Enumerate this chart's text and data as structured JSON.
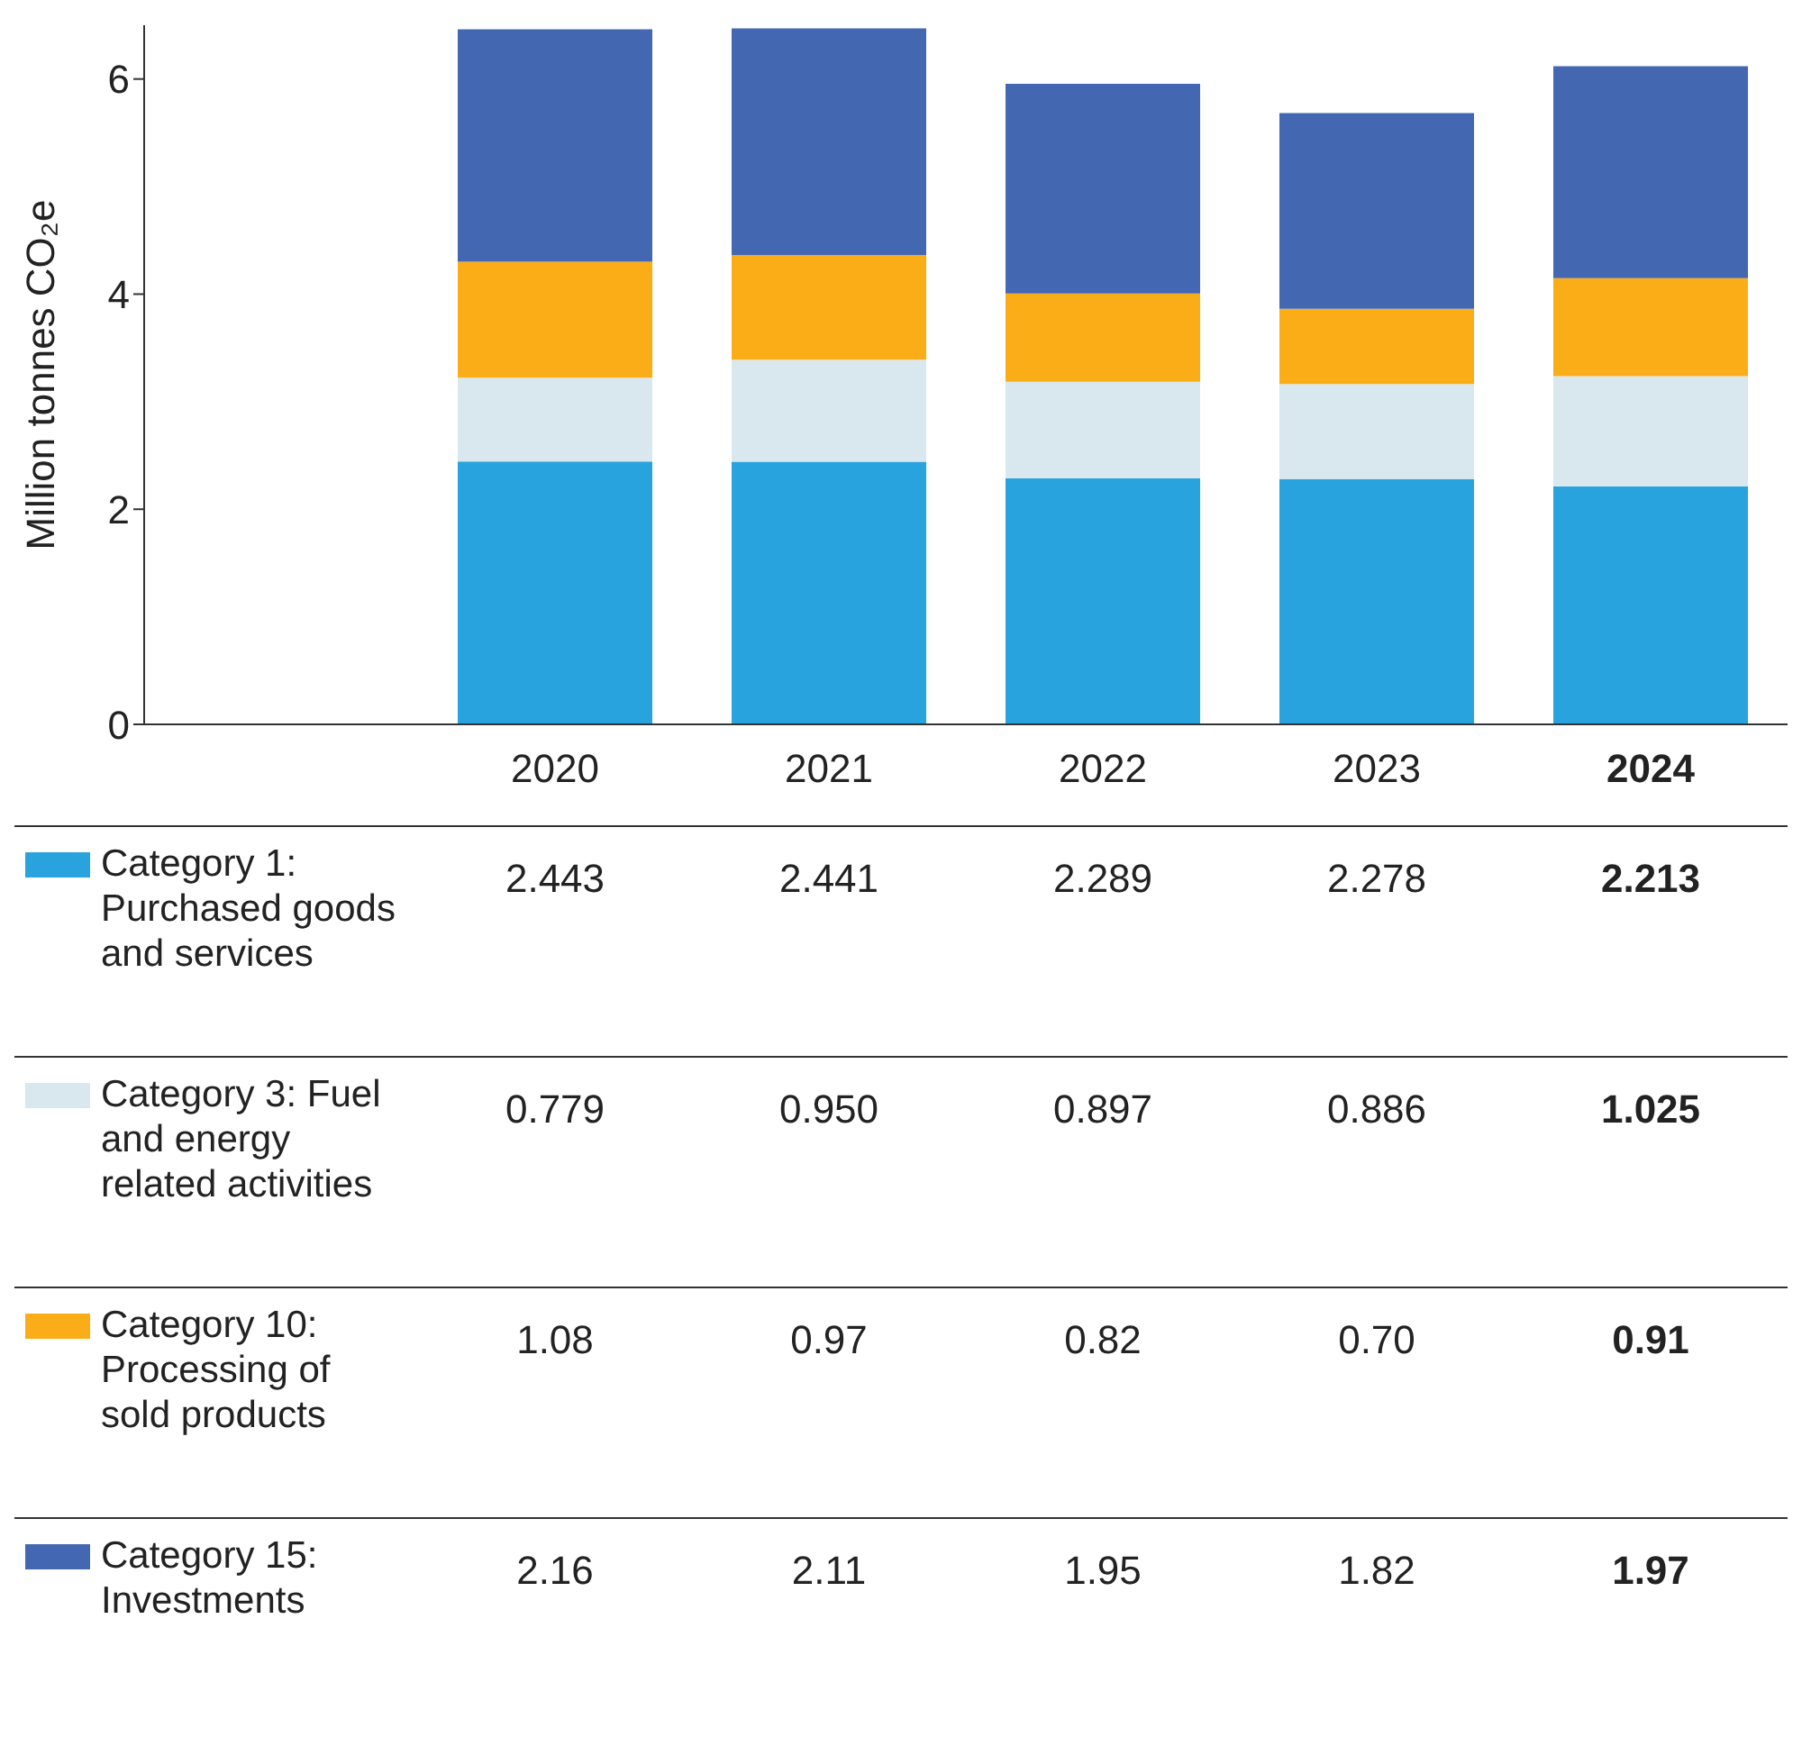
{
  "chart_data": {
    "type": "bar",
    "stacked": true,
    "ylabel": "Million tonnes CO₂e",
    "categories": [
      null,
      "2020",
      "2021",
      "2022",
      "2023",
      "2024"
    ],
    "ylim": [
      0,
      6.5
    ],
    "yticks": [
      0,
      2,
      4,
      6
    ],
    "legend": "bottom",
    "series": [
      {
        "name": "Category 1: Purchased goods and services",
        "color": "#29a3dd",
        "values": [
          null,
          2.443,
          2.441,
          2.289,
          2.278,
          2.213
        ],
        "value_labels": [
          null,
          "2.443",
          "2.441",
          "2.289",
          "2.278",
          "2.213"
        ]
      },
      {
        "name": "Category 3: Fuel and energy related activities",
        "color": "#d9e8ef",
        "values": [
          null,
          0.779,
          0.95,
          0.897,
          0.886,
          1.025
        ],
        "value_labels": [
          null,
          "0.779",
          "0.950",
          "0.897",
          "0.886",
          "1.025"
        ]
      },
      {
        "name": "Category 10: Processing of sold products",
        "color": "#fbad18",
        "values": [
          null,
          1.08,
          0.97,
          0.82,
          0.7,
          0.91
        ],
        "value_labels": [
          null,
          "1.08",
          "0.97",
          "0.82",
          "0.70",
          "0.91"
        ]
      },
      {
        "name": "Category 15: Investments",
        "color": "#4467b1",
        "values": [
          null,
          2.16,
          2.11,
          1.95,
          1.82,
          1.97
        ],
        "value_labels": [
          null,
          "2.16",
          "2.11",
          "1.95",
          "1.82",
          "1.97"
        ]
      }
    ]
  }
}
